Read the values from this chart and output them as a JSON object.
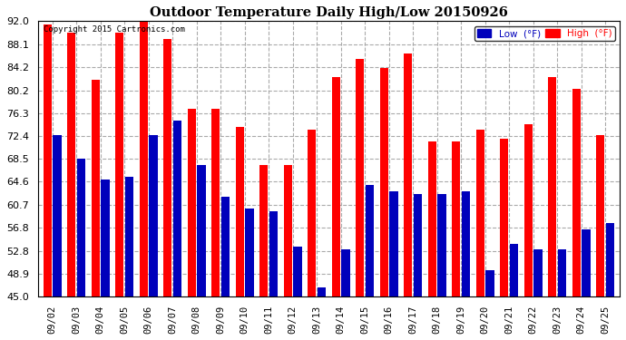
{
  "title": "Outdoor Temperature Daily High/Low 20150926",
  "copyright": "Copyright 2015 Cartronics.com",
  "dates": [
    "09/02",
    "09/03",
    "09/04",
    "09/05",
    "09/06",
    "09/07",
    "09/08",
    "09/09",
    "09/10",
    "09/11",
    "09/12",
    "09/13",
    "09/14",
    "09/15",
    "09/16",
    "09/17",
    "09/18",
    "09/19",
    "09/20",
    "09/21",
    "09/22",
    "09/23",
    "09/24",
    "09/25"
  ],
  "highs": [
    91.5,
    90.0,
    82.0,
    90.0,
    92.0,
    89.0,
    77.0,
    77.0,
    74.0,
    67.5,
    67.5,
    73.5,
    82.5,
    85.5,
    84.0,
    86.5,
    71.5,
    71.5,
    73.5,
    72.0,
    74.5,
    82.5,
    80.5,
    72.5
  ],
  "lows": [
    72.5,
    68.5,
    65.0,
    65.5,
    72.5,
    75.0,
    67.5,
    62.0,
    60.0,
    59.5,
    53.5,
    46.5,
    53.0,
    64.0,
    63.0,
    62.5,
    62.5,
    63.0,
    49.5,
    54.0,
    53.0,
    53.0,
    56.5,
    57.5
  ],
  "high_color": "#ff0000",
  "low_color": "#0000bb",
  "bg_color": "#ffffff",
  "plot_bg_color": "#ffffff",
  "grid_color": "#aaaaaa",
  "ylim_min": 45.0,
  "ylim_max": 92.0,
  "yticks": [
    45.0,
    48.9,
    52.8,
    56.8,
    60.7,
    64.6,
    68.5,
    72.4,
    76.3,
    80.2,
    84.2,
    88.1,
    92.0
  ]
}
